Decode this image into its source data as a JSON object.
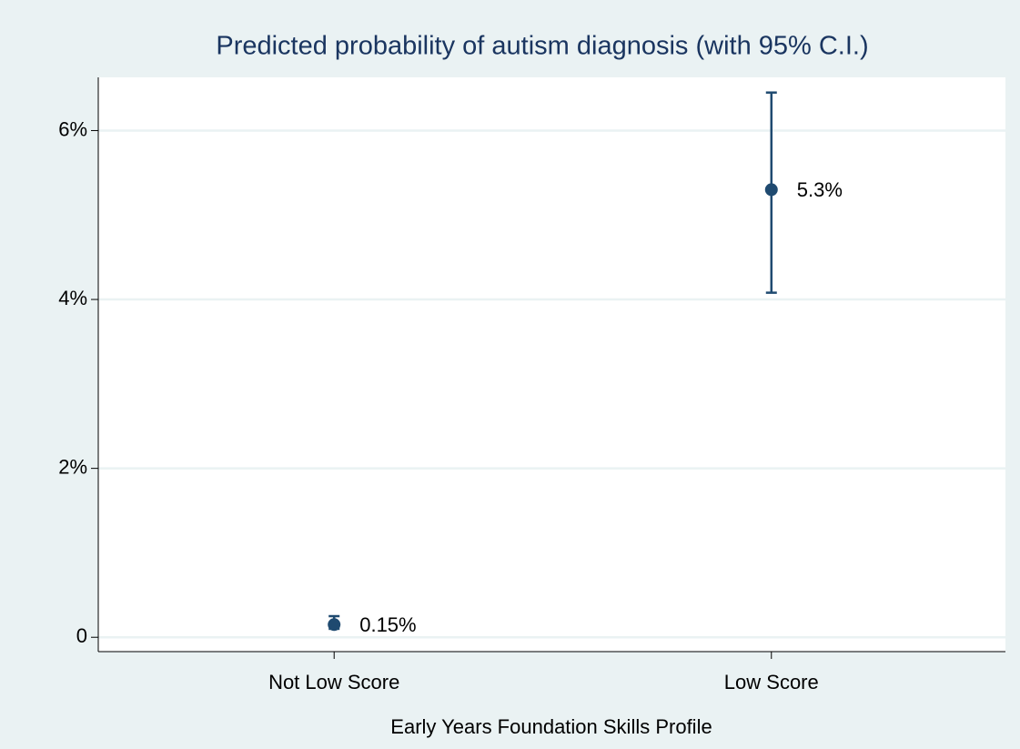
{
  "chart_data": {
    "type": "errorbar",
    "title": "Predicted probability of autism diagnosis (with 95% C.I.)",
    "x_label": "Early Years Foundation Skills Profile",
    "categories": [
      "Not Low Score",
      "Low Score"
    ],
    "series": [
      {
        "color": "#1f4a70",
        "values": [
          0.15,
          5.3
        ],
        "value_labels": [
          "0.15%",
          "5.3%"
        ],
        "lower": [
          0.1,
          4.08
        ],
        "upper": [
          0.25,
          6.45
        ]
      }
    ],
    "ylim": [
      -0.17,
      6.63
    ],
    "yticks": [
      0,
      {
        "value": 2,
        "label": "2%"
      },
      {
        "value": 4,
        "label": "4%"
      },
      {
        "value": 6,
        "label": "6%"
      }
    ],
    "grid": true
  }
}
